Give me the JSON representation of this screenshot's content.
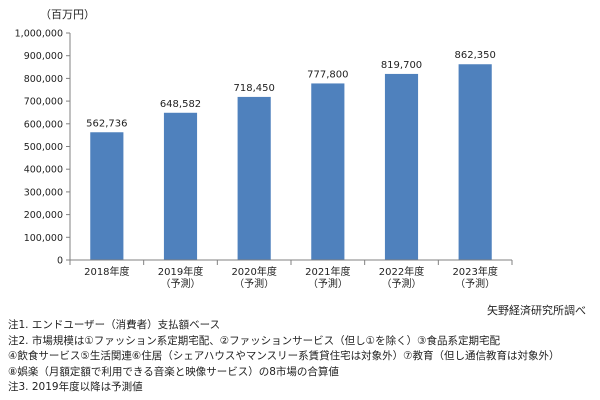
{
  "chart_data": {
    "type": "bar",
    "unit": "（百万円）",
    "categories": [
      [
        "2018年度"
      ],
      [
        "2019年度",
        "（予測）"
      ],
      [
        "2020年度",
        "（予測）"
      ],
      [
        "2021年度",
        "（予測）"
      ],
      [
        "2022年度",
        "（予測）"
      ],
      [
        "2023年度",
        "（予測）"
      ]
    ],
    "values": [
      562736,
      648582,
      718450,
      777800,
      819700,
      862350
    ],
    "value_labels": [
      "562,736",
      "648,582",
      "718,450",
      "777,800",
      "819,700",
      "862,350"
    ],
    "y_ticks": [
      "0",
      "100,000",
      "200,000",
      "300,000",
      "400,000",
      "500,000",
      "600,000",
      "700,000",
      "800,000",
      "900,000",
      "1,000,000"
    ],
    "ylim": [
      0,
      1000000
    ],
    "bar_color": "#4f81bd",
    "grid": false
  },
  "source": "矢野経済研究所調べ",
  "notes": [
    "注1. エンドユーザー（消費者）支払額ベース",
    "注2. 市場規模は①ファッション系定期宅配、②ファッションサービス（但し①を除く）③食品系定期宅配",
    "④飲食サービス⑤生活関連⑥住居（シェアハウスやマンスリー系賃貸住宅は対象外）⑦教育（但し通信教育は対象外）",
    "⑧娯楽（月額定額で利用できる音楽と映像サービス）の8市場の合算値",
    "注3. 2019年度以降は予測値"
  ]
}
